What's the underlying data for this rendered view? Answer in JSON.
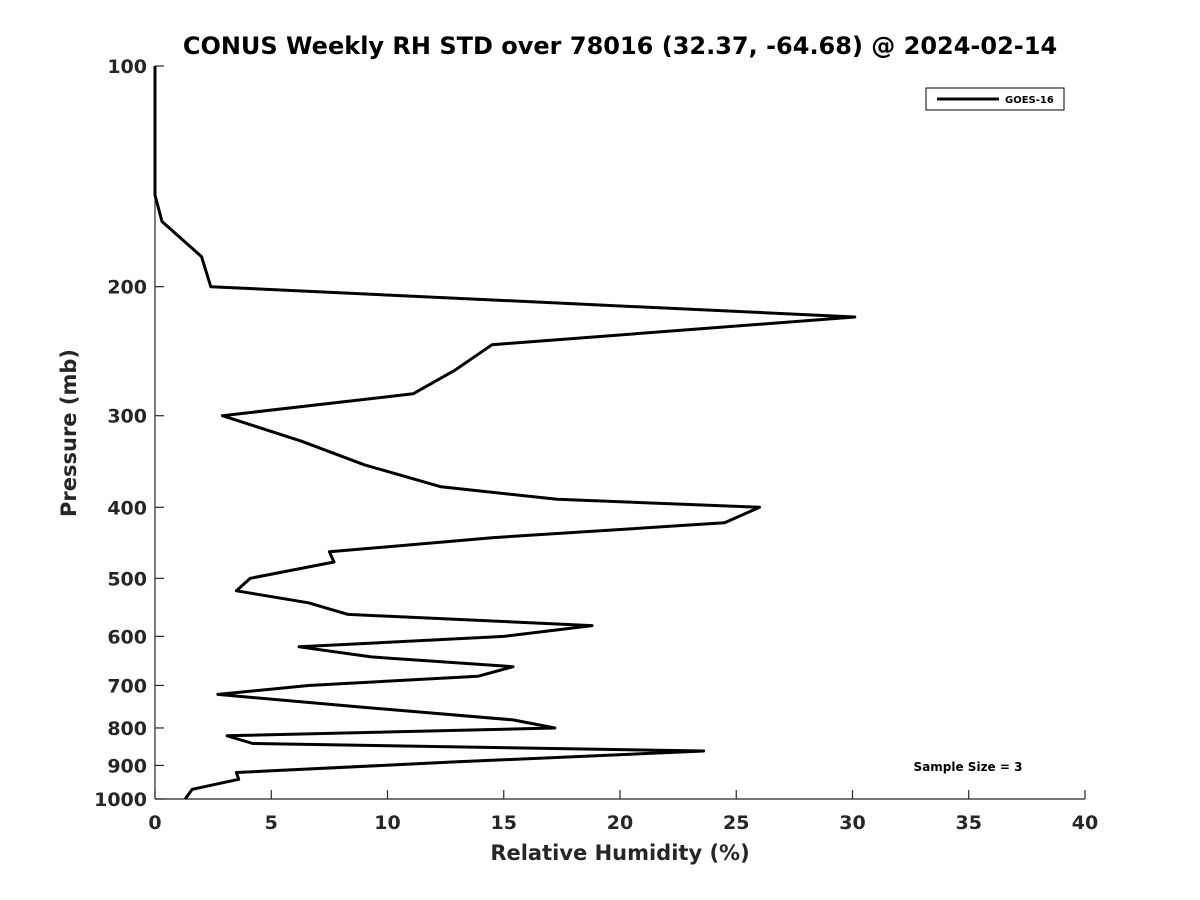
{
  "chart_data": {
    "type": "line",
    "title": "CONUS Weekly RH STD over 78016 (32.37, -64.68) @ 2024-02-14",
    "xlabel": "Relative Humidity (%)",
    "ylabel": "Pressure (mb)",
    "xlim": [
      0,
      40
    ],
    "ylim": [
      100,
      1000
    ],
    "y_scale": "log",
    "y_reversed": true,
    "grid": false,
    "legend": "top-right",
    "x_ticks": [
      "0",
      "5",
      "10",
      "15",
      "20",
      "25",
      "30",
      "35",
      "40"
    ],
    "y_ticks": [
      "100",
      "200",
      "300",
      "400",
      "500",
      "600",
      "700",
      "800",
      "900",
      "1000"
    ],
    "series": [
      {
        "name": "GOES-16",
        "color": "#000000",
        "points": [
          [
            0.0,
            100
          ],
          [
            0.0,
            150
          ],
          [
            0.3,
            163
          ],
          [
            2.0,
            182
          ],
          [
            2.4,
            200
          ],
          [
            30.1,
            220
          ],
          [
            14.5,
            240
          ],
          [
            12.9,
            260
          ],
          [
            11.1,
            280
          ],
          [
            2.9,
            300
          ],
          [
            6.3,
            325
          ],
          [
            9.0,
            350
          ],
          [
            12.3,
            375
          ],
          [
            17.3,
            390
          ],
          [
            26.0,
            400
          ],
          [
            24.5,
            420
          ],
          [
            14.5,
            440
          ],
          [
            7.5,
            460
          ],
          [
            7.7,
            475
          ],
          [
            4.1,
            500
          ],
          [
            3.5,
            520
          ],
          [
            6.6,
            540
          ],
          [
            8.3,
            560
          ],
          [
            18.8,
            580
          ],
          [
            15.0,
            600
          ],
          [
            6.2,
            620
          ],
          [
            9.3,
            640
          ],
          [
            15.4,
            660
          ],
          [
            13.9,
            680
          ],
          [
            6.6,
            700
          ],
          [
            2.7,
            720
          ],
          [
            9.0,
            750
          ],
          [
            15.4,
            780
          ],
          [
            17.2,
            800
          ],
          [
            3.1,
            820
          ],
          [
            4.2,
            840
          ],
          [
            23.6,
            860
          ],
          [
            12.9,
            890
          ],
          [
            3.5,
            920
          ],
          [
            3.6,
            940
          ],
          [
            1.6,
            970
          ],
          [
            1.3,
            1000
          ]
        ]
      }
    ],
    "annotations": [
      "Sample Size = 3"
    ]
  }
}
